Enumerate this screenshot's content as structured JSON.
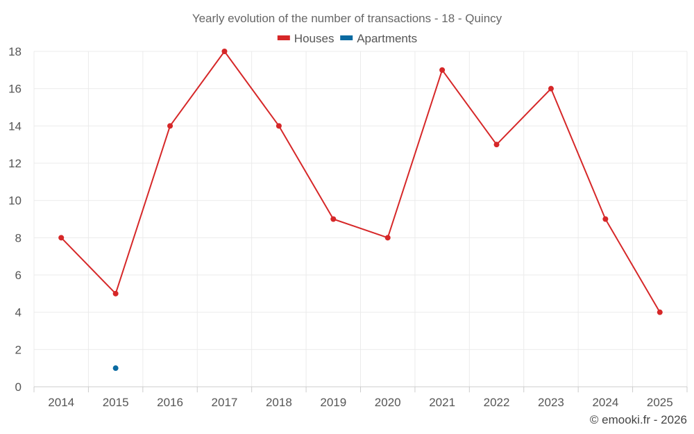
{
  "chart_data": {
    "type": "line",
    "title": "Yearly evolution of the number of transactions - 18 - Quincy",
    "categories": [
      "2014",
      "2015",
      "2016",
      "2017",
      "2018",
      "2019",
      "2020",
      "2021",
      "2022",
      "2023",
      "2024",
      "2025"
    ],
    "series": [
      {
        "name": "Houses",
        "color": "#d62728",
        "values": [
          8,
          5,
          14,
          18,
          14,
          9,
          8,
          17,
          13,
          16,
          9,
          4
        ]
      },
      {
        "name": "Apartments",
        "color": "#0a6aa1",
        "values": [
          null,
          1,
          null,
          null,
          null,
          null,
          null,
          null,
          null,
          null,
          null,
          null
        ]
      }
    ],
    "ylim": [
      0,
      18
    ],
    "yticks": [
      0,
      2,
      4,
      6,
      8,
      10,
      12,
      14,
      16,
      18
    ],
    "xlabel": "",
    "ylabel": "",
    "grid": true,
    "legend_position": "top-center",
    "credit": "© emooki.fr - 2026"
  }
}
